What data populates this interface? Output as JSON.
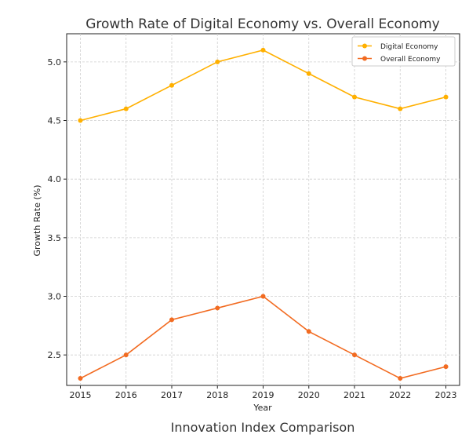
{
  "chart_data": {
    "type": "line",
    "title": "Growth Rate of Digital Economy vs. Overall Economy",
    "xlabel": "Year",
    "ylabel": "Growth Rate (%)",
    "x": [
      2015,
      2016,
      2017,
      2018,
      2019,
      2020,
      2021,
      2022,
      2023
    ],
    "x_tick_labels": [
      "2015",
      "2016",
      "2017",
      "2018",
      "2019",
      "2020",
      "2021",
      "2022",
      "2023"
    ],
    "y_ticks": [
      2.5,
      3.0,
      3.5,
      4.0,
      4.5,
      5.0
    ],
    "y_tick_labels": [
      "2.5",
      "3.0",
      "3.5",
      "4.0",
      "4.5",
      "5.0"
    ],
    "ylim": [
      2.24,
      5.24
    ],
    "xlim": [
      2014.7,
      2023.3
    ],
    "grid": true,
    "legend_position": "top-right",
    "series": [
      {
        "name": "Digital Economy",
        "color": "#FFB000",
        "values": [
          4.5,
          4.6,
          4.8,
          5.0,
          5.1,
          4.9,
          4.7,
          4.6,
          4.7
        ]
      },
      {
        "name": "Overall Economy",
        "color": "#F26B21",
        "values": [
          2.3,
          2.5,
          2.8,
          2.9,
          3.0,
          2.7,
          2.5,
          2.3,
          2.4
        ]
      }
    ]
  },
  "footer": {
    "caption": "Innovation Index Comparison"
  }
}
